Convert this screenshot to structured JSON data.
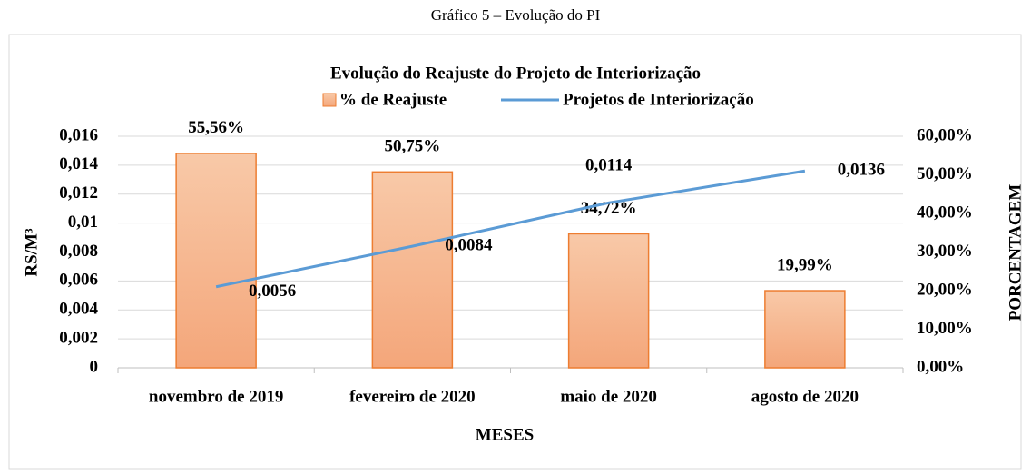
{
  "caption": "Gráfico 5 – Evolução do PI",
  "chart_data": {
    "type": "bar",
    "title": "Evolução do Reajuste do Projeto de Interiorização",
    "x_label": "MESES",
    "y_label": "RS/M³",
    "y2_label": "PORCENTAGEM",
    "categories": [
      "novembro de 2019",
      "fevereiro de 2020",
      "maio de 2020",
      "agosto de 2020"
    ],
    "series": [
      {
        "name": "% de Reajuste",
        "type": "bar",
        "axis": "y2",
        "color": "#f4b183",
        "values": [
          55.56,
          50.75,
          34.72,
          19.99
        ],
        "value_labels": [
          "55,56%",
          "50,75%",
          "34,72%",
          "19,99%"
        ]
      },
      {
        "name": "Projetos de Interiorização",
        "type": "line",
        "color": "#5b9bd5",
        "values": [
          0.0056,
          0.0084,
          0.0114,
          0.0136
        ],
        "value_labels": [
          "0,0056",
          "0,0084",
          "0,0114",
          "0,0136"
        ]
      }
    ],
    "ylim": [
      0,
      0.016
    ],
    "yticks": [
      0,
      {
        "value": 0.002,
        "label": "0,002"
      },
      {
        "value": 0.004,
        "label": "0,004"
      },
      {
        "value": 0.006,
        "label": "0,006"
      },
      {
        "value": 0.008,
        "label": "0,008"
      },
      {
        "value": 0.01,
        "label": "0,01"
      },
      {
        "value": 0.012,
        "label": "0,012"
      },
      {
        "value": 0.014,
        "label": "0,014"
      },
      {
        "value": 0.016,
        "label": "0,016"
      }
    ],
    "y2lim": [
      0,
      60
    ],
    "y2ticks": [
      {
        "value": 0,
        "label": "0,00%"
      },
      {
        "value": 10,
        "label": "10,00%"
      },
      {
        "value": 20,
        "label": "20,00%"
      },
      {
        "value": 30,
        "label": "30,00%"
      },
      {
        "value": 40,
        "label": "40,00%"
      },
      {
        "value": 50,
        "label": "50,00%"
      },
      {
        "value": 60,
        "label": "60,00%"
      }
    ],
    "grid": true,
    "legend": "top"
  }
}
